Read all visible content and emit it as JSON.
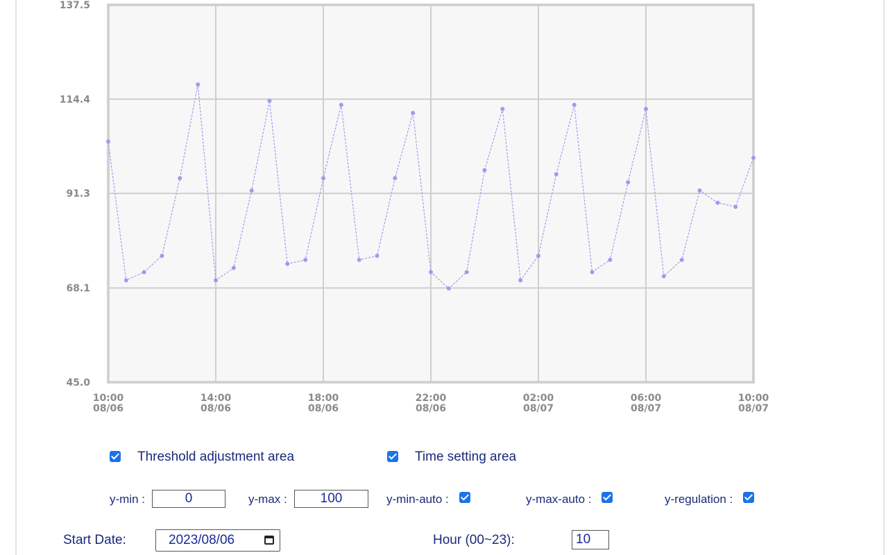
{
  "chart_data": {
    "type": "scatter",
    "style": "dashed connected points",
    "point_color": "#9c9cf0",
    "grid": true,
    "ylim": [
      45.0,
      137.5
    ],
    "y_ticks": [
      "137.5",
      "114.4",
      "91.3",
      "68.1",
      "45.0"
    ],
    "xlim": [
      "2023-08-06 10:00",
      "2023-08-07 10:00"
    ],
    "x_ticks": [
      {
        "time": "10:00",
        "date": "08/06"
      },
      {
        "time": "14:00",
        "date": "08/06"
      },
      {
        "time": "18:00",
        "date": "08/06"
      },
      {
        "time": "22:00",
        "date": "08/06"
      },
      {
        "time": "02:00",
        "date": "08/07"
      },
      {
        "time": "06:00",
        "date": "08/07"
      },
      {
        "time": "10:00",
        "date": "08/07"
      }
    ],
    "x": [
      "2023-08-06 10:00",
      "2023-08-06 10:40",
      "2023-08-06 11:20",
      "2023-08-06 12:00",
      "2023-08-06 12:40",
      "2023-08-06 13:20",
      "2023-08-06 14:00",
      "2023-08-06 14:40",
      "2023-08-06 15:20",
      "2023-08-06 16:00",
      "2023-08-06 16:40",
      "2023-08-06 17:20",
      "2023-08-06 18:00",
      "2023-08-06 18:40",
      "2023-08-06 19:20",
      "2023-08-06 20:00",
      "2023-08-06 20:40",
      "2023-08-06 21:20",
      "2023-08-06 22:00",
      "2023-08-06 22:40",
      "2023-08-06 23:20",
      "2023-08-07 00:00",
      "2023-08-07 00:40",
      "2023-08-07 01:20",
      "2023-08-07 02:00",
      "2023-08-07 02:40",
      "2023-08-07 03:20",
      "2023-08-07 04:00",
      "2023-08-07 04:40",
      "2023-08-07 05:20",
      "2023-08-07 06:00",
      "2023-08-07 06:40",
      "2023-08-07 07:20",
      "2023-08-07 08:00",
      "2023-08-07 08:40",
      "2023-08-07 09:20",
      "2023-08-07 10:00"
    ],
    "values": [
      104,
      70,
      72,
      76,
      95,
      118,
      70,
      73,
      92,
      114,
      74,
      75,
      95,
      113,
      75,
      76,
      95,
      111,
      72,
      68,
      72,
      97,
      112,
      70,
      76,
      96,
      113,
      72,
      75,
      94,
      112,
      71,
      75,
      92,
      89,
      88,
      100
    ]
  },
  "options": {
    "threshold_label": "Threshold adjustment area",
    "time_setting_label": "Time setting area",
    "ymin_label": "y-min :",
    "ymin_value": "0",
    "ymax_label": "y-max :",
    "ymax_value": "100",
    "ymin_auto_label": "y-min-auto :",
    "ymax_auto_label": "y-max-auto :",
    "yreg_label": "y-regulation :",
    "start_date_label": "Start Date:",
    "start_date_value": "2023/08/06",
    "hour_label": "Hour (00~23):",
    "hour_value": "10"
  }
}
